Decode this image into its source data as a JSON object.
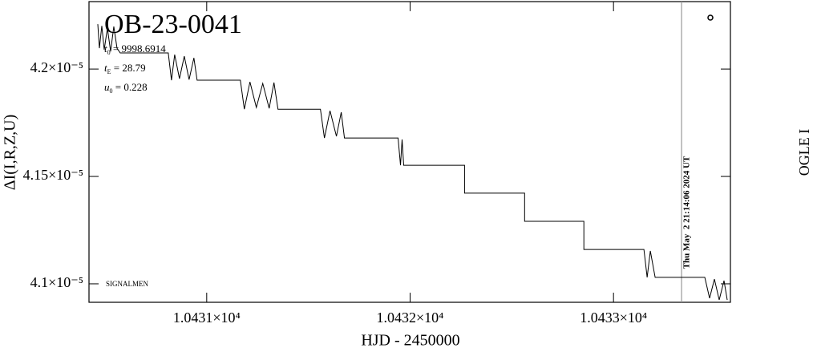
{
  "chart_data": {
    "type": "line",
    "title": "OB-23-0041",
    "annotations": [
      {
        "symbol": "t",
        "sub": "0",
        "text": " = 9998.6914"
      },
      {
        "symbol": "t",
        "sub": "E",
        "text": " = 28.79"
      },
      {
        "symbol": "u",
        "sub": "0",
        "text": " = 0.228"
      }
    ],
    "footnote": "SIGNALMEN",
    "timestamp": "Thu May  2 21:14:06 2024 UT",
    "timestamp_x": 10433.3346,
    "instrument": "OGLE I",
    "x_label": "HJD - 2450000",
    "y_label": "ΔI(I,R,Z,U)",
    "xlim": [
      10430.4213,
      10433.5748
    ],
    "ylim": [
      4.0914e-05,
      4.2314e-05
    ],
    "xticks": [
      {
        "value": 10431,
        "label": "1.0431×10⁴"
      },
      {
        "value": 10432,
        "label": "1.0432×10⁴"
      },
      {
        "value": 10433,
        "label": "1.0433×10⁴"
      }
    ],
    "yticks": [
      {
        "value": 4.1e-05,
        "label": "4.1×10⁻⁵"
      },
      {
        "value": 4.15e-05,
        "label": "4.15×10⁻⁵"
      },
      {
        "value": 4.2e-05,
        "label": "4.2×10⁻⁵"
      }
    ],
    "series": [
      {
        "color": "#000000",
        "x": [
          10430.4646,
          10430.4724,
          10430.4843,
          10430.4961,
          10430.5118,
          10430.5276,
          10430.5433,
          10430.5591,
          10430.5748,
          10430.811,
          10430.8268,
          10430.8425,
          10430.8661,
          10430.8898,
          10430.9134,
          10430.937,
          10430.9528,
          10431.1654,
          10431.185,
          10431.2126,
          10431.2441,
          10431.2756,
          10431.3071,
          10431.3307,
          10431.3504,
          10431.5591,
          10431.5787,
          10431.6063,
          10431.6378,
          10431.6614,
          10431.6772,
          10431.9409,
          10431.9528,
          10431.9606,
          10431.9685,
          10432.2677,
          10432.2677,
          10432.563,
          10432.563,
          10432.8543,
          10432.8543,
          10433.1496,
          10433.1654,
          10433.1811,
          10433.2047,
          10433.4488,
          10433.4724,
          10433.4961,
          10433.5197,
          10433.5433,
          10433.5591
        ],
        "values": [
          4.2209e-05,
          4.2097e-05,
          4.2201e-05,
          4.209e-05,
          4.219e-05,
          4.2082e-05,
          4.2198e-05,
          4.2097e-05,
          4.2075e-05,
          4.2075e-05,
          4.1948e-05,
          4.2067e-05,
          4.1955e-05,
          4.206e-05,
          4.1951e-05,
          4.2052e-05,
          4.1948e-05,
          4.1948e-05,
          4.1813e-05,
          4.194e-05,
          4.1821e-05,
          4.1933e-05,
          4.1817e-05,
          4.1937e-05,
          4.1813e-05,
          4.1813e-05,
          4.1679e-05,
          4.1806e-05,
          4.1687e-05,
          4.1799e-05,
          4.1679e-05,
          4.1679e-05,
          4.1552e-05,
          4.1672e-05,
          4.1552e-05,
          4.1552e-05,
          4.1422e-05,
          4.1422e-05,
          4.1291e-05,
          4.1291e-05,
          4.116e-05,
          4.116e-05,
          4.103e-05,
          4.1153e-05,
          4.103e-05,
          4.103e-05,
          4.0933e-05,
          4.1022e-05,
          4.0925e-05,
          4.1015e-05,
          4.0925e-05
        ]
      }
    ]
  }
}
